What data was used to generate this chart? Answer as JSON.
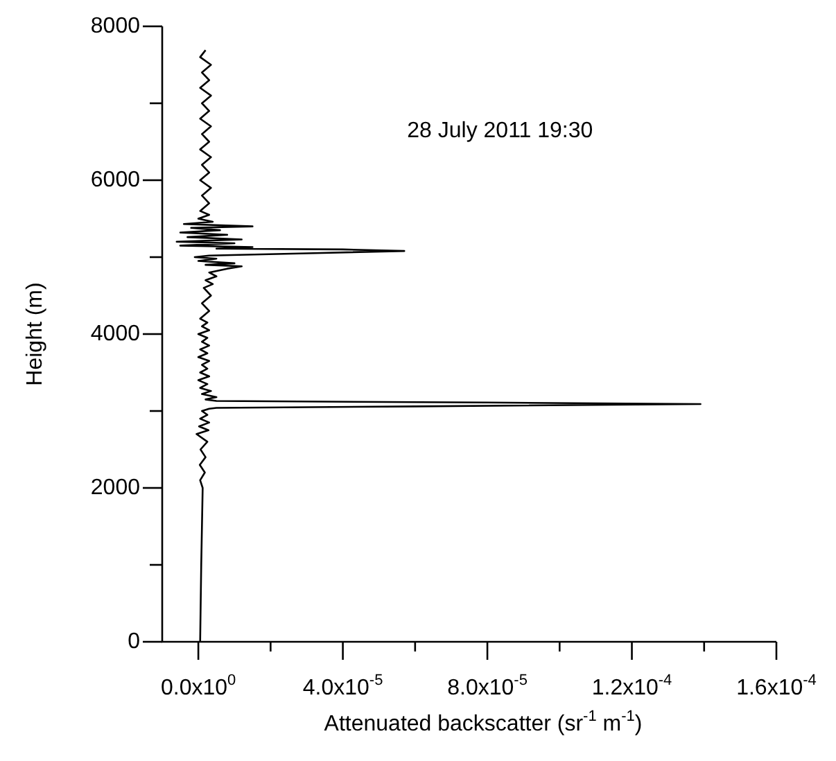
{
  "chart_data": {
    "type": "line",
    "xlabel": "Attenuated backscatter (sr$^{-1}$ m$^{-1}$)",
    "ylabel": "Height (m)",
    "annotations": [
      "28 July 2011 19:30"
    ],
    "xlim": [
      -1e-05,
      0.00016
    ],
    "xticks": [
      {
        "value": 0,
        "label": "0.0x10$^{0}$"
      },
      {
        "value": 2e-05,
        "label": null
      },
      {
        "value": 4e-05,
        "label": "4.0x10$^{-5}$"
      },
      {
        "value": 6e-05,
        "label": null
      },
      {
        "value": 8e-05,
        "label": "8.0x10$^{-5}$"
      },
      {
        "value": 0.0001,
        "label": null
      },
      {
        "value": 0.00012,
        "label": "1.2x10$^{-4}$"
      },
      {
        "value": 0.00014,
        "label": null
      },
      {
        "value": 0.00016,
        "label": "1.6x10$^{-4}$"
      }
    ],
    "ylim": [
      0,
      8000
    ],
    "yticks": [
      0,
      {
        "value": 1000,
        "label": null
      },
      2000,
      {
        "value": 3000,
        "label": null
      },
      4000,
      {
        "value": 5000,
        "label": null
      },
      6000,
      {
        "value": 7000,
        "label": null
      },
      8000
    ],
    "grid": false,
    "legend": false,
    "marker": "none",
    "line_style": "solid",
    "series": [
      {
        "color": "#000000",
        "x": [
          5e-07,
          8e-07,
          1.2e-06,
          5e-07,
          1.8e-06,
          4e-07,
          2e-06,
          6e-07,
          2.5e-06,
          -5e-07,
          2.8e-06,
          2e-07,
          3e-06,
          5e-07,
          2.5e-06,
          1e-06,
          3e-06,
          5e-06,
          6e-05,
          0.000139,
          8e-05,
          5e-06,
          2e-06,
          5e-06,
          1e-06,
          3.5e-06,
          5e-07,
          2.5e-06,
          0,
          3e-06,
          5e-07,
          2.5e-06,
          1e-06,
          3e-06,
          0,
          2.5e-06,
          5e-07,
          3e-06,
          1e-06,
          2.5e-06,
          0,
          3e-06,
          1e-06,
          2.5e-06,
          5e-07,
          3e-06,
          1e-06,
          3.5e-06,
          1.5e-06,
          4e-06,
          2e-06,
          5e-06,
          3e-06,
          8e-06,
          1.2e-05,
          2e-06,
          1e-05,
          0,
          5e-06,
          -1e-06,
          3e-06,
          3e-05,
          5.7e-05,
          4e-05,
          5e-06,
          1.5e-05,
          -5e-06,
          1e-05,
          -6e-06,
          1.2e-05,
          -3e-06,
          8e-06,
          -5e-06,
          6e-06,
          -2e-06,
          1.5e-05,
          -4e-06,
          4e-06,
          0,
          3e-06,
          5e-07,
          3e-06,
          1e-06,
          3.5e-06,
          5e-07,
          3e-06,
          1e-06,
          3.5e-06,
          5e-07,
          3e-06,
          1e-06,
          3.5e-06,
          5e-07,
          3e-06,
          1e-06,
          3.5e-06,
          5e-07,
          3e-06,
          1e-06,
          3.5e-06,
          5e-07,
          2e-06
        ],
        "values": [
          0,
          1000,
          2000,
          2100,
          2200,
          2300,
          2400,
          2500,
          2600,
          2700,
          2750,
          2800,
          2850,
          2900,
          2950,
          3000,
          3030,
          3040,
          3060,
          3090,
          3110,
          3130,
          3150,
          3180,
          3220,
          3260,
          3300,
          3350,
          3400,
          3450,
          3500,
          3550,
          3600,
          3650,
          3700,
          3750,
          3800,
          3850,
          3900,
          3950,
          4000,
          4050,
          4100,
          4150,
          4200,
          4300,
          4400,
          4500,
          4600,
          4650,
          4700,
          4750,
          4800,
          4850,
          4880,
          4900,
          4920,
          4950,
          4980,
          5000,
          5020,
          5050,
          5080,
          5100,
          5110,
          5130,
          5150,
          5180,
          5200,
          5230,
          5260,
          5290,
          5320,
          5350,
          5380,
          5400,
          5430,
          5460,
          5500,
          5550,
          5600,
          5700,
          5800,
          5900,
          6000,
          6100,
          6200,
          6300,
          6400,
          6500,
          6600,
          6700,
          6800,
          6900,
          7000,
          7100,
          7200,
          7300,
          7400,
          7500,
          7600,
          7690
        ]
      }
    ]
  }
}
